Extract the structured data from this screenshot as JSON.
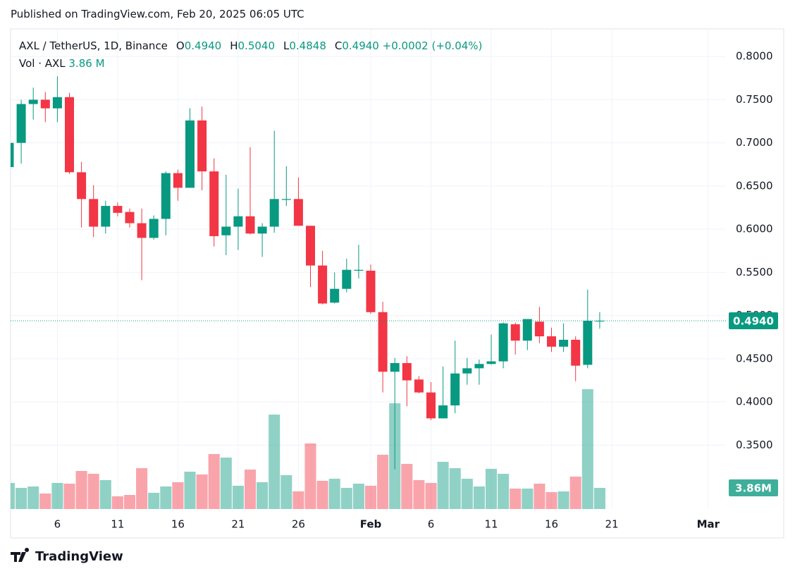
{
  "header": {
    "published": "Published on TradingView.com, Feb 20, 2025 06:05 UTC"
  },
  "legend": {
    "symbol": "AXL / TetherUS, 1D, Binance",
    "fields": [
      {
        "key": "O",
        "value": "0.4940"
      },
      {
        "key": "H",
        "value": "0.5040"
      },
      {
        "key": "L",
        "value": "0.4848"
      },
      {
        "key": "C",
        "value": "0.4940"
      }
    ],
    "change": "+0.0002 (+0.04%)",
    "volume_label": "Vol · AXL",
    "volume_value": "3.86 M"
  },
  "price_tag": "0.4940",
  "volume_tag": "3.86M",
  "footer": {
    "brand": "TradingView"
  },
  "chart_data": {
    "type": "candlestick",
    "x": [
      "2025-01-02",
      "2025-01-03",
      "2025-01-04",
      "2025-01-05",
      "2025-01-06",
      "2025-01-07",
      "2025-01-08",
      "2025-01-09",
      "2025-01-10",
      "2025-01-11",
      "2025-01-12",
      "2025-01-13",
      "2025-01-14",
      "2025-01-15",
      "2025-01-16",
      "2025-01-17",
      "2025-01-18",
      "2025-01-19",
      "2025-01-20",
      "2025-01-21",
      "2025-01-22",
      "2025-01-23",
      "2025-01-24",
      "2025-01-25",
      "2025-01-26",
      "2025-01-27",
      "2025-01-28",
      "2025-01-29",
      "2025-01-30",
      "2025-01-31",
      "2025-02-01",
      "2025-02-02",
      "2025-02-03",
      "2025-02-04",
      "2025-02-05",
      "2025-02-06",
      "2025-02-07",
      "2025-02-08",
      "2025-02-09",
      "2025-02-10",
      "2025-02-11",
      "2025-02-12",
      "2025-02-13",
      "2025-02-14",
      "2025-02-15",
      "2025-02-16",
      "2025-02-17",
      "2025-02-18",
      "2025-02-19",
      "2025-02-20"
    ],
    "open": [
      0.672,
      0.7,
      0.745,
      0.75,
      0.74,
      0.753,
      0.666,
      0.635,
      0.603,
      0.627,
      0.62,
      0.607,
      0.59,
      0.612,
      0.665,
      0.648,
      0.726,
      0.667,
      0.593,
      0.603,
      0.615,
      0.595,
      0.603,
      0.634,
      0.635,
      0.604,
      0.558,
      0.515,
      0.531,
      0.552,
      0.552,
      0.504,
      0.435,
      0.445,
      0.426,
      0.411,
      0.381,
      0.396,
      0.433,
      0.439,
      0.444,
      0.447,
      0.49,
      0.471,
      0.493,
      0.476,
      0.464,
      0.472,
      0.443,
      0.494
    ],
    "high": [
      0.705,
      0.75,
      0.764,
      0.759,
      0.777,
      0.758,
      0.678,
      0.651,
      0.633,
      0.631,
      0.624,
      0.624,
      0.616,
      0.667,
      0.669,
      0.74,
      0.742,
      0.682,
      0.663,
      0.647,
      0.695,
      0.607,
      0.714,
      0.673,
      0.66,
      0.604,
      0.575,
      0.55,
      0.566,
      0.582,
      0.559,
      0.516,
      0.451,
      0.453,
      0.43,
      0.423,
      0.441,
      0.471,
      0.451,
      0.449,
      0.478,
      0.492,
      0.492,
      0.496,
      0.51,
      0.486,
      0.491,
      0.476,
      0.53,
      0.504
    ],
    "low": [
      0.668,
      0.676,
      0.727,
      0.724,
      0.724,
      0.664,
      0.602,
      0.591,
      0.595,
      0.615,
      0.602,
      0.541,
      0.588,
      0.593,
      0.633,
      0.648,
      0.645,
      0.58,
      0.57,
      0.576,
      0.594,
      0.568,
      0.596,
      0.627,
      0.604,
      0.533,
      0.513,
      0.514,
      0.527,
      0.543,
      0.502,
      0.411,
      0.322,
      0.395,
      0.41,
      0.379,
      0.381,
      0.387,
      0.42,
      0.42,
      0.443,
      0.439,
      0.455,
      0.46,
      0.468,
      0.458,
      0.458,
      0.424,
      0.439,
      0.4848
    ],
    "close": [
      0.7,
      0.745,
      0.75,
      0.74,
      0.753,
      0.666,
      0.635,
      0.603,
      0.627,
      0.619,
      0.607,
      0.59,
      0.612,
      0.665,
      0.648,
      0.726,
      0.667,
      0.592,
      0.603,
      0.615,
      0.595,
      0.603,
      0.635,
      0.635,
      0.604,
      0.558,
      0.514,
      0.531,
      0.553,
      0.553,
      0.504,
      0.435,
      0.445,
      0.425,
      0.411,
      0.381,
      0.396,
      0.433,
      0.439,
      0.444,
      0.447,
      0.491,
      0.471,
      0.496,
      0.476,
      0.464,
      0.472,
      0.442,
      0.494,
      0.494
    ],
    "volume": [
      4.76,
      3.86,
      4.12,
      2.83,
      4.76,
      4.63,
      6.95,
      6.43,
      5.28,
      2.32,
      2.57,
      7.46,
      2.96,
      4.12,
      4.89,
      6.82,
      6.31,
      10.04,
      9.39,
      4.25,
      7.21,
      4.89,
      17.24,
      6.18,
      3.22,
      11.97,
      5.15,
      5.53,
      3.86,
      4.63,
      4.25,
      9.91,
      19.3,
      8.24,
      5.28,
      4.76,
      8.62,
      7.46,
      5.53,
      4.12,
      7.34,
      6.43,
      3.73,
      3.73,
      4.63,
      3.09,
      3.22,
      5.92,
      21.88,
      3.86
    ],
    "up_color": "#089981",
    "down_color": "#f23645",
    "xlim": [
      "2025-01-02",
      "2025-03-03"
    ],
    "xticks": [
      {
        "value": "2025-01-06",
        "label": "6"
      },
      {
        "value": "2025-01-11",
        "label": "11"
      },
      {
        "value": "2025-01-16",
        "label": "16"
      },
      {
        "value": "2025-01-21",
        "label": "21"
      },
      {
        "value": "2025-01-26",
        "label": "26"
      },
      {
        "value": "2025-02-01",
        "label": "Feb"
      },
      {
        "value": "2025-02-06",
        "label": "6"
      },
      {
        "value": "2025-02-11",
        "label": "11"
      },
      {
        "value": "2025-02-16",
        "label": "16"
      },
      {
        "value": "2025-02-21",
        "label": "21"
      },
      {
        "value": "2025-03-01",
        "label": "Mar"
      }
    ],
    "ylim": [
      0.276,
      0.832
    ],
    "yticks": [
      {
        "value": 0.35,
        "label": "0.3500"
      },
      {
        "value": 0.4,
        "label": "0.4000"
      },
      {
        "value": 0.45,
        "label": "0.4500"
      },
      {
        "value": 0.5,
        "label": "0.5000"
      },
      {
        "value": 0.55,
        "label": "0.5500"
      },
      {
        "value": 0.6,
        "label": "0.6000"
      },
      {
        "value": 0.65,
        "label": "0.6500"
      },
      {
        "value": 0.7,
        "label": "0.7000"
      },
      {
        "value": 0.75,
        "label": "0.7500"
      },
      {
        "value": 0.8,
        "label": "0.8000"
      }
    ],
    "grid": true
  }
}
